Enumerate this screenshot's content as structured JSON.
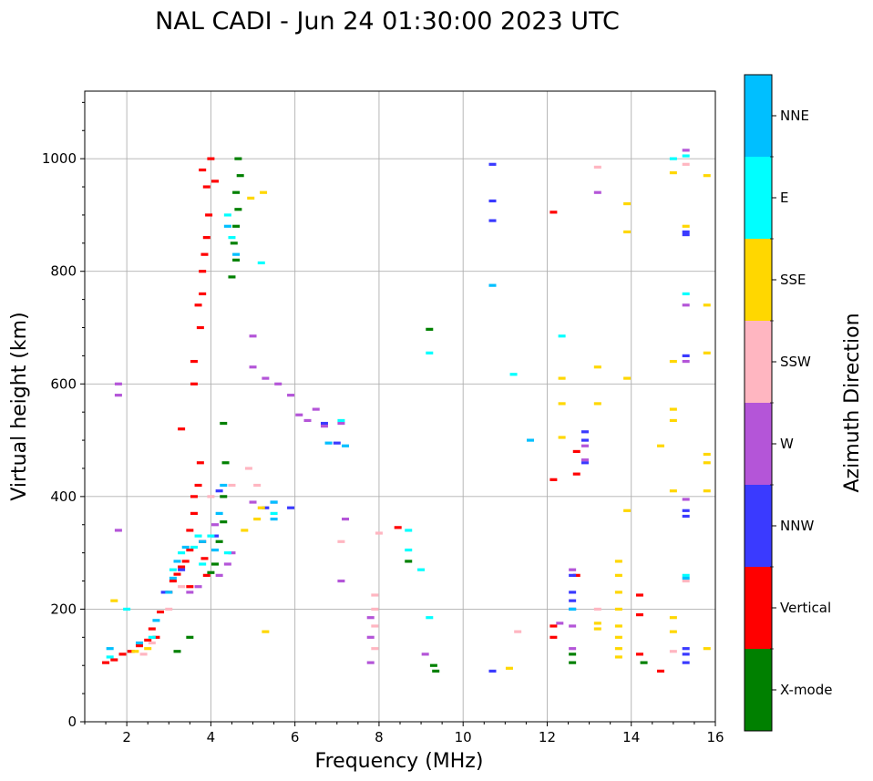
{
  "chart_data": {
    "type": "scatter",
    "title": "NAL CADI - Jun 24 01:30:00 2023 UTC",
    "xlabel": "Frequency (MHz)",
    "ylabel": "Virtual height (km)",
    "xlim": [
      1,
      16
    ],
    "ylim": [
      0,
      1120
    ],
    "xticks": [
      2,
      4,
      6,
      8,
      10,
      12,
      14,
      16
    ],
    "yticks": [
      0,
      200,
      400,
      600,
      800,
      1000
    ],
    "grid": true,
    "colorbar": {
      "label": "Azimuth Direction",
      "categories": [
        {
          "name": "X-mode",
          "color": "#008000"
        },
        {
          "name": "Vertical",
          "color": "#ff0000"
        },
        {
          "name": "NNW",
          "color": "#3a3aff"
        },
        {
          "name": "W",
          "color": "#b455d8"
        },
        {
          "name": "SSW",
          "color": "#ffb6c1"
        },
        {
          "name": "SSE",
          "color": "#ffd700"
        },
        {
          "name": "E",
          "color": "#00ffff"
        },
        {
          "name": "NNE",
          "color": "#00bfff"
        }
      ]
    },
    "series": [
      {
        "name": "Vertical",
        "color": "#ff0000",
        "points": [
          [
            1.5,
            105
          ],
          [
            1.7,
            110
          ],
          [
            1.9,
            120
          ],
          [
            2.1,
            125
          ],
          [
            2.3,
            135
          ],
          [
            2.5,
            145
          ],
          [
            2.6,
            165
          ],
          [
            2.8,
            195
          ],
          [
            3.0,
            230
          ],
          [
            3.1,
            250
          ],
          [
            3.2,
            262
          ],
          [
            3.3,
            275
          ],
          [
            3.4,
            285
          ],
          [
            3.5,
            305
          ],
          [
            3.5,
            340
          ],
          [
            3.6,
            370
          ],
          [
            3.6,
            400
          ],
          [
            3.7,
            420
          ],
          [
            3.75,
            460
          ],
          [
            3.8,
            320
          ],
          [
            3.85,
            290
          ],
          [
            3.9,
            260
          ],
          [
            3.6,
            600
          ],
          [
            3.6,
            640
          ],
          [
            3.75,
            700
          ],
          [
            3.7,
            740
          ],
          [
            3.8,
            760
          ],
          [
            3.8,
            800
          ],
          [
            3.85,
            830
          ],
          [
            3.9,
            860
          ],
          [
            3.95,
            900
          ],
          [
            3.9,
            950
          ],
          [
            3.8,
            980
          ],
          [
            4.0,
            1000
          ],
          [
            4.1,
            960
          ],
          [
            3.5,
            240
          ],
          [
            3.3,
            520
          ],
          [
            2.7,
            150
          ],
          [
            12.15,
            150
          ],
          [
            12.15,
            170
          ],
          [
            12.15,
            430
          ],
          [
            12.15,
            905
          ],
          [
            12.7,
            440
          ],
          [
            12.7,
            480
          ],
          [
            12.7,
            260
          ],
          [
            14.2,
            120
          ],
          [
            14.2,
            190
          ],
          [
            14.2,
            225
          ],
          [
            14.7,
            90
          ],
          [
            8.45,
            345
          ]
        ]
      },
      {
        "name": "X-mode",
        "color": "#008000",
        "points": [
          [
            3.2,
            125
          ],
          [
            3.5,
            150
          ],
          [
            4.0,
            265
          ],
          [
            4.1,
            280
          ],
          [
            4.2,
            320
          ],
          [
            4.3,
            355
          ],
          [
            4.3,
            400
          ],
          [
            4.35,
            460
          ],
          [
            4.3,
            530
          ],
          [
            4.5,
            790
          ],
          [
            4.6,
            820
          ],
          [
            4.55,
            850
          ],
          [
            4.6,
            880
          ],
          [
            4.65,
            910
          ],
          [
            4.6,
            940
          ],
          [
            4.7,
            970
          ],
          [
            4.65,
            1000
          ],
          [
            8.7,
            285
          ],
          [
            9.2,
            697
          ],
          [
            9.35,
            90
          ],
          [
            9.3,
            100
          ],
          [
            12.6,
            105
          ],
          [
            12.6,
            120
          ],
          [
            14.3,
            105
          ]
        ]
      },
      {
        "name": "NNW",
        "color": "#3a3aff",
        "points": [
          [
            2.9,
            230
          ],
          [
            3.3,
            270
          ],
          [
            4.1,
            330
          ],
          [
            4.2,
            410
          ],
          [
            5.3,
            380
          ],
          [
            5.5,
            390
          ],
          [
            5.9,
            380
          ],
          [
            6.7,
            530
          ],
          [
            7.0,
            495
          ],
          [
            10.7,
            90
          ],
          [
            10.7,
            890
          ],
          [
            10.7,
            925
          ],
          [
            10.7,
            990
          ],
          [
            12.6,
            200
          ],
          [
            12.6,
            215
          ],
          [
            12.6,
            230
          ],
          [
            12.6,
            260
          ],
          [
            12.9,
            460
          ],
          [
            12.9,
            500
          ],
          [
            12.9,
            515
          ],
          [
            15.3,
            105
          ],
          [
            15.3,
            120
          ],
          [
            15.3,
            130
          ],
          [
            15.3,
            365
          ],
          [
            15.3,
            375
          ],
          [
            15.3,
            650
          ],
          [
            15.3,
            865
          ],
          [
            15.3,
            870
          ]
        ]
      },
      {
        "name": "W",
        "color": "#b455d8",
        "points": [
          [
            3.5,
            230
          ],
          [
            3.7,
            240
          ],
          [
            4.2,
            260
          ],
          [
            4.4,
            280
          ],
          [
            4.5,
            300
          ],
          [
            4.1,
            350
          ],
          [
            5.0,
            390
          ],
          [
            5.0,
            685
          ],
          [
            5.0,
            630
          ],
          [
            5.3,
            610
          ],
          [
            5.6,
            600
          ],
          [
            5.9,
            580
          ],
          [
            6.1,
            545
          ],
          [
            6.3,
            535
          ],
          [
            6.5,
            555
          ],
          [
            6.7,
            525
          ],
          [
            7.1,
            530
          ],
          [
            7.8,
            105
          ],
          [
            7.8,
            150
          ],
          [
            7.8,
            185
          ],
          [
            7.2,
            360
          ],
          [
            7.1,
            250
          ],
          [
            9.1,
            120
          ],
          [
            12.3,
            175
          ],
          [
            12.6,
            130
          ],
          [
            12.6,
            170
          ],
          [
            12.6,
            270
          ],
          [
            12.9,
            465
          ],
          [
            12.9,
            490
          ],
          [
            13.2,
            940
          ],
          [
            15.3,
            395
          ],
          [
            15.3,
            640
          ],
          [
            15.3,
            740
          ],
          [
            15.3,
            1015
          ],
          [
            1.8,
            600
          ],
          [
            1.8,
            580
          ],
          [
            1.8,
            340
          ]
        ]
      },
      {
        "name": "SSW",
        "color": "#ffb6c1",
        "points": [
          [
            2.4,
            120
          ],
          [
            2.6,
            140
          ],
          [
            3.0,
            200
          ],
          [
            3.3,
            240
          ],
          [
            4.0,
            400
          ],
          [
            4.5,
            420
          ],
          [
            4.9,
            450
          ],
          [
            5.1,
            420
          ],
          [
            7.9,
            130
          ],
          [
            7.9,
            170
          ],
          [
            7.9,
            200
          ],
          [
            7.9,
            225
          ],
          [
            8.0,
            335
          ],
          [
            7.1,
            320
          ],
          [
            11.3,
            160
          ],
          [
            13.2,
            200
          ],
          [
            13.2,
            985
          ],
          [
            15.0,
            125
          ],
          [
            15.3,
            250
          ],
          [
            15.3,
            990
          ]
        ]
      },
      {
        "name": "SSE",
        "color": "#ffd700",
        "points": [
          [
            1.7,
            215
          ],
          [
            2.2,
            125
          ],
          [
            2.5,
            130
          ],
          [
            4.8,
            340
          ],
          [
            4.95,
            930
          ],
          [
            5.1,
            360
          ],
          [
            5.2,
            380
          ],
          [
            5.25,
            940
          ],
          [
            5.3,
            160
          ],
          [
            11.1,
            95
          ],
          [
            12.35,
            505
          ],
          [
            12.35,
            565
          ],
          [
            12.35,
            610
          ],
          [
            13.2,
            165
          ],
          [
            13.2,
            175
          ],
          [
            13.2,
            565
          ],
          [
            13.2,
            630
          ],
          [
            13.7,
            115
          ],
          [
            13.7,
            130
          ],
          [
            13.7,
            150
          ],
          [
            13.7,
            170
          ],
          [
            13.7,
            200
          ],
          [
            13.7,
            230
          ],
          [
            13.7,
            260
          ],
          [
            13.7,
            285
          ],
          [
            13.9,
            375
          ],
          [
            13.9,
            610
          ],
          [
            13.9,
            870
          ],
          [
            13.9,
            920
          ],
          [
            14.7,
            490
          ],
          [
            15.0,
            160
          ],
          [
            15.0,
            185
          ],
          [
            15.0,
            410
          ],
          [
            15.0,
            535
          ],
          [
            15.0,
            555
          ],
          [
            15.0,
            640
          ],
          [
            15.0,
            975
          ],
          [
            15.3,
            880
          ],
          [
            15.8,
            130
          ],
          [
            15.8,
            410
          ],
          [
            15.8,
            460
          ],
          [
            15.8,
            475
          ],
          [
            15.8,
            655
          ],
          [
            15.8,
            740
          ],
          [
            15.8,
            970
          ]
        ]
      },
      {
        "name": "E",
        "color": "#00ffff",
        "points": [
          [
            1.6,
            115
          ],
          [
            2.0,
            200
          ],
          [
            2.6,
            150
          ],
          [
            3.1,
            270
          ],
          [
            3.3,
            300
          ],
          [
            3.6,
            310
          ],
          [
            3.7,
            330
          ],
          [
            3.8,
            280
          ],
          [
            4.0,
            330
          ],
          [
            4.4,
            300
          ],
          [
            4.4,
            900
          ],
          [
            4.5,
            860
          ],
          [
            5.2,
            815
          ],
          [
            5.5,
            370
          ],
          [
            7.1,
            535
          ],
          [
            8.7,
            340
          ],
          [
            8.7,
            305
          ],
          [
            9.0,
            270
          ],
          [
            9.2,
            185
          ],
          [
            9.2,
            655
          ],
          [
            11.2,
            617
          ],
          [
            12.35,
            685
          ],
          [
            15.0,
            1000
          ],
          [
            15.3,
            1005
          ],
          [
            15.3,
            760
          ],
          [
            15.3,
            260
          ]
        ]
      },
      {
        "name": "NNE",
        "color": "#00bfff",
        "points": [
          [
            1.6,
            130
          ],
          [
            2.3,
            140
          ],
          [
            2.7,
            180
          ],
          [
            3.0,
            230
          ],
          [
            3.1,
            255
          ],
          [
            3.2,
            285
          ],
          [
            3.4,
            310
          ],
          [
            3.8,
            320
          ],
          [
            4.1,
            305
          ],
          [
            4.2,
            370
          ],
          [
            4.3,
            420
          ],
          [
            4.4,
            880
          ],
          [
            4.6,
            830
          ],
          [
            5.5,
            360
          ],
          [
            5.5,
            390
          ],
          [
            6.8,
            495
          ],
          [
            7.2,
            490
          ],
          [
            10.7,
            775
          ],
          [
            11.6,
            500
          ],
          [
            12.6,
            200
          ],
          [
            15.3,
            255
          ]
        ]
      }
    ]
  }
}
